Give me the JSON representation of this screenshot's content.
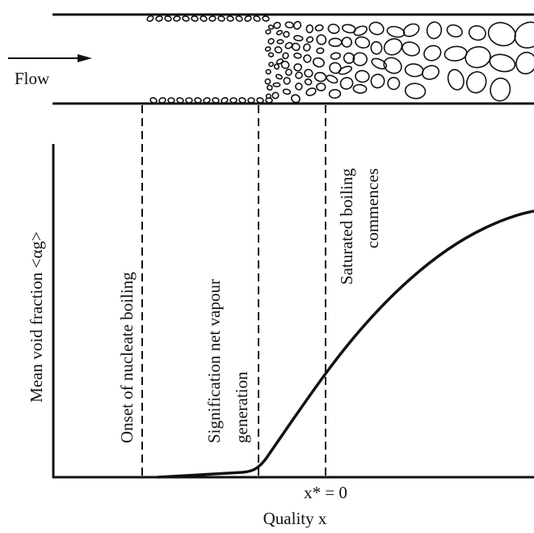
{
  "flow_label": "Flow",
  "y_axis_label": "Mean void fraction <αg>",
  "x_axis_label": "Quality x",
  "x_marker": "x* = 0",
  "regions": [
    {
      "lines": [
        "Onset of nucleate boiling"
      ]
    },
    {
      "lines": [
        "Signification net vapour",
        "generation"
      ]
    },
    {
      "lines": [
        "Saturated boiling",
        "commences"
      ]
    }
  ]
}
